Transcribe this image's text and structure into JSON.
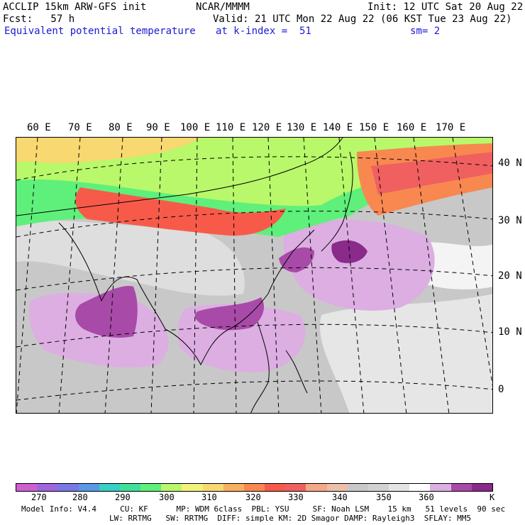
{
  "header": {
    "model": "ACCLIP 15km ARW-GFS init",
    "org": "NCAR/MMMM",
    "init": "Init: 12 UTC Sat 20 Aug 22",
    "fcst": "Fcst:   57 h",
    "valid": "Valid: 21 UTC Mon 22 Aug 22 (06 KST Tue 23 Aug 22)",
    "field": "Equivalent potential temperature",
    "level": "at k-index =  51",
    "smooth": "sm= 2"
  },
  "map": {
    "lon_labels": [
      "60 E",
      "70 E",
      "80 E",
      "90 E",
      "100 E",
      "110 E",
      "120 E",
      "130 E",
      "140 E",
      "150 E",
      "160 E",
      "170 E"
    ],
    "lat_labels": [
      "40 N",
      "30 N",
      "20 N",
      "10 N",
      "0"
    ]
  },
  "colorbar": {
    "colors": [
      "#cf5fd0",
      "#a066e0",
      "#7a78e6",
      "#5a98e8",
      "#36d0c4",
      "#3fe09a",
      "#5ef07a",
      "#b8f86a",
      "#f2f27a",
      "#f8d870",
      "#f8b060",
      "#f88850",
      "#f85a4a",
      "#f06060",
      "#f4a888",
      "#ecc0a8",
      "#c8c8c8",
      "#d2d2d2",
      "#e4e4e4",
      "#ffffff",
      "#dcaee2",
      "#a84aa8",
      "#8a2a8a"
    ],
    "tick_labels": [
      "270",
      "280",
      "290",
      "300",
      "310",
      "320",
      "330",
      "340",
      "350",
      "360"
    ],
    "unit": "K"
  },
  "footer": {
    "line1": "Model Info: V4.4     CU: KF      MP: WDM 6class  PBL: YSU     SF: Noah LSM    15 km   51 levels  90 sec",
    "line2": "LW: RRTMG   SW: RRTMG  DIFF: simple KM: 2D Smagor DAMP: Rayleigh3  SFLAY: MM5"
  }
}
